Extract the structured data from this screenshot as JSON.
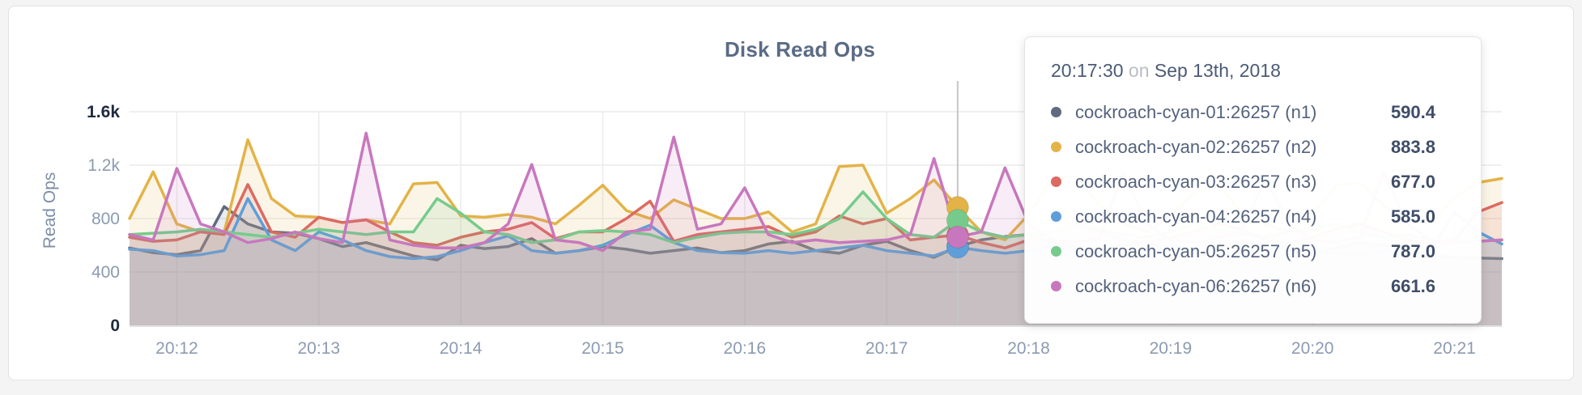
{
  "card": {
    "title": "Disk Read Ops"
  },
  "chart_data": {
    "type": "line",
    "title": "Disk Read Ops",
    "xlabel": "",
    "ylabel": "Read Ops",
    "x_start": "20:11:40",
    "x_step_seconds": 10,
    "ylim": [
      0,
      1600
    ],
    "grid": true,
    "legend_position": "tooltip",
    "y_ticks": [
      {
        "label": "1.6k",
        "value": 1600
      },
      {
        "label": "1.2k",
        "value": 1200
      },
      {
        "label": "800",
        "value": 800
      },
      {
        "label": "400",
        "value": 400
      },
      {
        "label": "0",
        "value": 0
      }
    ],
    "x_ticks": [
      {
        "label": "20:12",
        "index": 2
      },
      {
        "label": "20:13",
        "index": 8
      },
      {
        "label": "20:14",
        "index": 14
      },
      {
        "label": "20:15",
        "index": 20
      },
      {
        "label": "20:16",
        "index": 26
      },
      {
        "label": "20:17",
        "index": 32
      },
      {
        "label": "20:18",
        "index": 38
      },
      {
        "label": "20:19",
        "index": 44
      },
      {
        "label": "20:20",
        "index": 50
      },
      {
        "label": "20:21",
        "index": 56
      }
    ],
    "hover": {
      "index": 35,
      "time": "20:17:30"
    },
    "series": [
      {
        "name": "cockroach-cyan-01:26257 (n1)",
        "color": "#5e6b80",
        "values": [
          580,
          545,
          530,
          560,
          890,
          760,
          700,
          690,
          650,
          590,
          620,
          570,
          520,
          490,
          600,
          575,
          590,
          650,
          540,
          560,
          590,
          570,
          540,
          560,
          580,
          545,
          560,
          610,
          630,
          560,
          540,
          600,
          630,
          560,
          510,
          590.4,
          640,
          665,
          680,
          620,
          590,
          560,
          600,
          630,
          560,
          540,
          580,
          620,
          600,
          560,
          540,
          580,
          620,
          600,
          560,
          520,
          510,
          505,
          500
        ]
      },
      {
        "name": "cockroach-cyan-02:26257 (n2)",
        "color": "#e3b348",
        "values": [
          800,
          1150,
          760,
          700,
          700,
          1390,
          950,
          820,
          810,
          770,
          790,
          760,
          1060,
          1070,
          820,
          810,
          830,
          810,
          760,
          900,
          1050,
          860,
          800,
          940,
          870,
          800,
          800,
          850,
          700,
          760,
          1190,
          1200,
          840,
          950,
          1090,
          883.8,
          700,
          640,
          830,
          1100,
          1120,
          900,
          760,
          700,
          820,
          1000,
          1050,
          850,
          760,
          700,
          830,
          1050,
          1070,
          900,
          800,
          760,
          960,
          1070,
          1100
        ]
      },
      {
        "name": "cockroach-cyan-03:26257 (n3)",
        "color": "#dc6a62",
        "values": [
          660,
          630,
          640,
          700,
          680,
          1055,
          700,
          660,
          810,
          770,
          790,
          700,
          620,
          600,
          660,
          700,
          720,
          770,
          650,
          700,
          700,
          800,
          930,
          630,
          680,
          700,
          720,
          740,
          660,
          700,
          820,
          760,
          800,
          640,
          660,
          677,
          620,
          580,
          640,
          700,
          760,
          700,
          640,
          620,
          660,
          700,
          760,
          720,
          640,
          620,
          660,
          720,
          760,
          700,
          640,
          610,
          640,
          850,
          920
        ]
      },
      {
        "name": "cockroach-cyan-04:26257 (n4)",
        "color": "#5f9ed9",
        "values": [
          570,
          560,
          520,
          530,
          560,
          950,
          640,
          560,
          700,
          640,
          560,
          515,
          500,
          515,
          560,
          620,
          670,
          560,
          540,
          560,
          600,
          680,
          750,
          620,
          560,
          545,
          540,
          560,
          540,
          560,
          580,
          600,
          560,
          540,
          520,
          585,
          560,
          540,
          560,
          600,
          560,
          540,
          520,
          560,
          600,
          560,
          540,
          520,
          560,
          600,
          560,
          540,
          520,
          560,
          600,
          560,
          850,
          700,
          610
        ]
      },
      {
        "name": "cockroach-cyan-05:26257 (n5)",
        "color": "#76cb8c",
        "values": [
          680,
          690,
          700,
          720,
          700,
          680,
          660,
          690,
          720,
          700,
          680,
          700,
          700,
          950,
          840,
          700,
          680,
          620,
          640,
          700,
          710,
          700,
          680,
          620,
          660,
          690,
          700,
          700,
          680,
          720,
          800,
          1000,
          800,
          680,
          660,
          787,
          700,
          660,
          680,
          700,
          760,
          720,
          680,
          660,
          700,
          760,
          720,
          680,
          660,
          700,
          720,
          760,
          700,
          660,
          680,
          640,
          620,
          630,
          640
        ]
      },
      {
        "name": "cockroach-cyan-06:26257 (n6)",
        "color": "#c877be",
        "values": [
          680,
          640,
          1175,
          760,
          700,
          620,
          650,
          700,
          650,
          620,
          1440,
          640,
          600,
          580,
          580,
          620,
          760,
          1205,
          640,
          620,
          560,
          700,
          720,
          1410,
          720,
          760,
          1030,
          680,
          620,
          640,
          620,
          630,
          640,
          680,
          1250,
          661.6,
          700,
          1180,
          760,
          640,
          620,
          660,
          1150,
          760,
          640,
          620,
          660,
          700,
          1100,
          760,
          640,
          620,
          660,
          1150,
          760,
          640,
          620,
          630,
          640
        ]
      }
    ]
  },
  "tooltip": {
    "time": "20:17:30",
    "separator": "on",
    "date": "Sep 13th, 2018",
    "rows": [
      {
        "name": "cockroach-cyan-01:26257 (n1)",
        "value": "590.4"
      },
      {
        "name": "cockroach-cyan-02:26257 (n2)",
        "value": "883.8"
      },
      {
        "name": "cockroach-cyan-03:26257 (n3)",
        "value": "677.0"
      },
      {
        "name": "cockroach-cyan-04:26257 (n4)",
        "value": "585.0"
      },
      {
        "name": "cockroach-cyan-05:26257 (n5)",
        "value": "787.0"
      },
      {
        "name": "cockroach-cyan-06:26257 (n6)",
        "value": "661.6"
      }
    ]
  }
}
